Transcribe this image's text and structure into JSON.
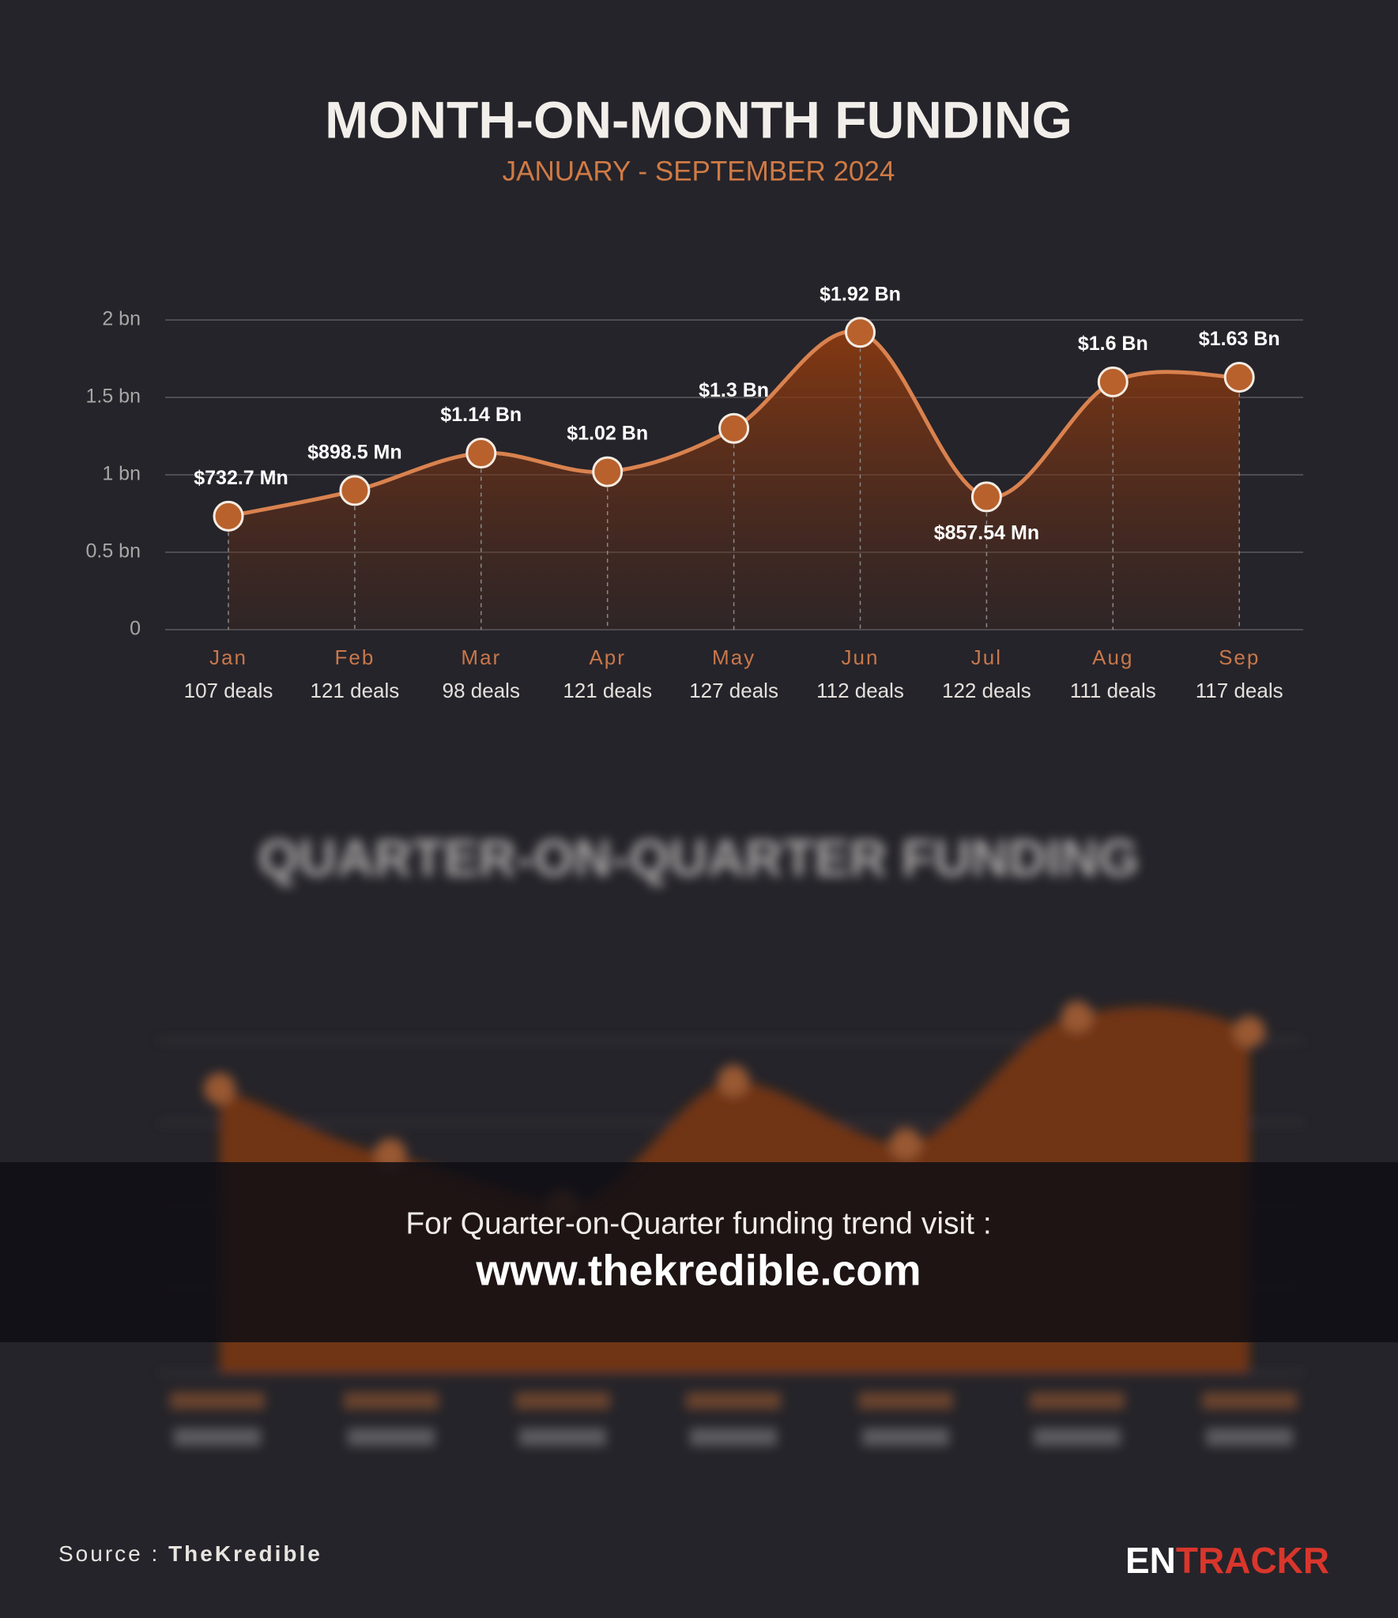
{
  "chart_data": {
    "type": "area",
    "title": "MONTH-ON-MONTH FUNDING",
    "subtitle": "JANUARY - SEPTEMBER 2024",
    "categories": [
      "Jan",
      "Feb",
      "Mar",
      "Apr",
      "May",
      "Jun",
      "Jul",
      "Aug",
      "Sep"
    ],
    "sublabels": [
      "107 deals",
      "121 deals",
      "98 deals",
      "121 deals",
      "127 deals",
      "112 deals",
      "122 deals",
      "111 deals",
      "117 deals"
    ],
    "values": [
      0.7327,
      0.8985,
      1.14,
      1.02,
      1.3,
      1.92,
      0.85754,
      1.6,
      1.63
    ],
    "value_labels": [
      "$732.7 Mn",
      "$898.5 Mn",
      "$1.14 Bn",
      "$1.02 Bn",
      "$1.3 Bn",
      "$1.92 Bn",
      "$857.54 Mn",
      "$1.6 Bn",
      "$1.63 Bn"
    ],
    "color": "#d9824f",
    "ylim": [
      0,
      2
    ],
    "yticks": [
      0,
      {
        "value": 0.5,
        "label": "0.5 bn"
      },
      {
        "value": 1,
        "label": "1 bn"
      },
      {
        "value": 1.5,
        "label": "1.5 bn"
      },
      {
        "value": 2,
        "label": "2 bn"
      }
    ],
    "grid": true
  },
  "blurred_section": {
    "title": "QUARTER-ON-QUARTER FUNDING"
  },
  "overlay": {
    "text": "For Quarter-on-Quarter funding trend visit :",
    "link": "www.thekredible.com"
  },
  "footer": {
    "source_label": "Source :",
    "source": "TheKredible",
    "logo_a": "EN",
    "logo_b": "TRACKR"
  }
}
